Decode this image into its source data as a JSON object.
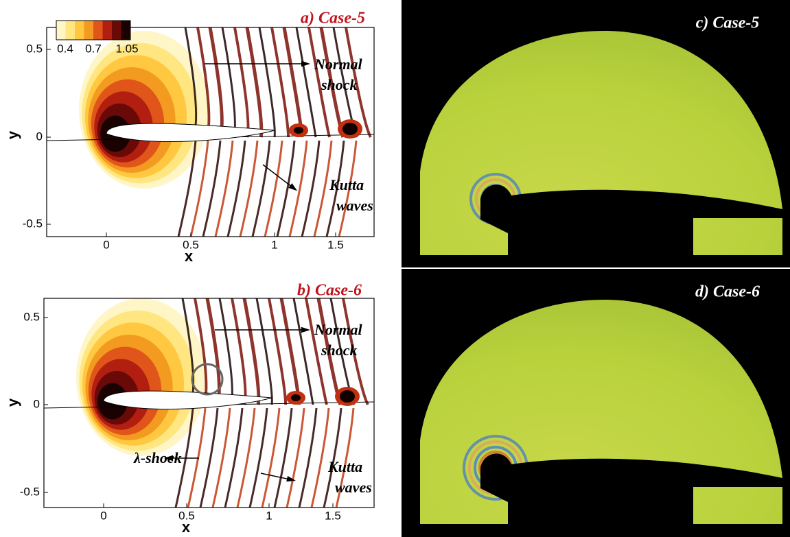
{
  "panels": [
    {
      "label": "a) Case-5",
      "xlabel": "x",
      "ylabel": "y",
      "xticks": [
        "0",
        "0.5",
        "1",
        "1.5"
      ],
      "yticks": [
        "0.5",
        "0",
        "-0.5"
      ],
      "annotations": [
        {
          "lines": [
            "Normal",
            "shock"
          ]
        },
        {
          "lines": [
            "Kutta",
            "waves"
          ]
        }
      ]
    },
    {
      "label": "b) Case-6",
      "xlabel": "x",
      "ylabel": "y",
      "xticks": [
        "0",
        "0.5",
        "1",
        "1.5"
      ],
      "yticks": [
        "0.5",
        "0",
        "-0.5"
      ],
      "annotations": [
        {
          "lines": [
            "Normal",
            "shock"
          ]
        },
        {
          "lines": [
            "λ-shock"
          ]
        },
        {
          "lines": [
            "Kutta",
            "waves"
          ]
        }
      ]
    }
  ],
  "colorbar": {
    "ticks": [
      "0.4",
      "0.7",
      "1.05"
    ]
  },
  "photos": [
    {
      "label": "c) Case-5"
    },
    {
      "label": "d) Case-6"
    }
  ]
}
